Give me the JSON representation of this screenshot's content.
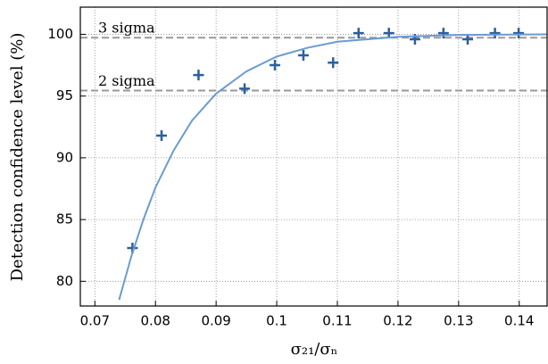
{
  "chart_data": {
    "type": "scatter",
    "x_label": "σ₂₁/σₙ",
    "y_label": "Detection confidence level (%)",
    "xlim": [
      0.0676,
      0.1446
    ],
    "ylim": [
      78.0,
      102.2
    ],
    "xticks": [
      0.07,
      0.08,
      0.09,
      0.1,
      0.11,
      0.12,
      0.13,
      0.14
    ],
    "yticks": [
      80,
      85,
      90,
      95,
      100
    ],
    "grid": true,
    "hlines": [
      {
        "value": 99.73,
        "label": "3 sigma"
      },
      {
        "value": 95.45,
        "label": "2 sigma"
      }
    ],
    "hline_color": "#999999",
    "series": [
      {
        "kind": "points",
        "color": "#2d5fa0",
        "x": [
          0.0762,
          0.081,
          0.0871,
          0.0947,
          0.0997,
          0.1044,
          0.1093,
          0.1135,
          0.1185,
          0.1228,
          0.1275,
          0.1315,
          0.136,
          0.1399
        ],
        "values": [
          82.7,
          91.8,
          96.7,
          95.6,
          97.5,
          98.3,
          97.7,
          100.1,
          100.1,
          99.6,
          100.1,
          99.6,
          100.1,
          100.1
        ]
      },
      {
        "kind": "line",
        "color": "#6b9bd2",
        "x": [
          0.074,
          0.076,
          0.078,
          0.08,
          0.083,
          0.086,
          0.09,
          0.095,
          0.1,
          0.105,
          0.11,
          0.12,
          0.13,
          0.1446
        ],
        "values": [
          78.5,
          82,
          85,
          87.6,
          90.6,
          93,
          95.2,
          97,
          98.2,
          98.9,
          99.4,
          99.8,
          99.95,
          100
        ]
      }
    ]
  }
}
